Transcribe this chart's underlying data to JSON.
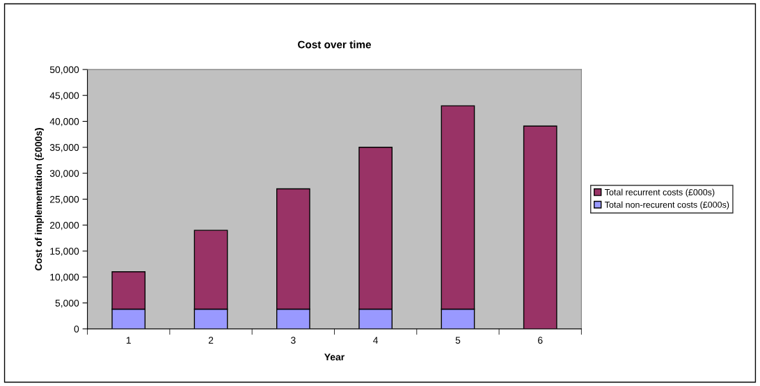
{
  "chart_data": {
    "type": "bar",
    "title": "Cost over time",
    "xlabel": "Year",
    "ylabel": "Cost of implementation (£000s)",
    "categories": [
      "1",
      "2",
      "3",
      "4",
      "5",
      "6"
    ],
    "stacked": true,
    "series": [
      {
        "name": "Total non-recurent costs (£000s)",
        "color": "#9999ff",
        "values": [
          3800,
          3800,
          3800,
          3800,
          3800,
          null
        ]
      },
      {
        "name": "Total recurrent costs (£000s)",
        "color": "#993366",
        "values": [
          7200,
          15200,
          23200,
          31200,
          39200,
          39100
        ]
      }
    ],
    "ylim": [
      0,
      50000
    ],
    "yticks": [
      {
        "value": 0,
        "label": "0"
      },
      {
        "value": 5000,
        "label": "5,000"
      },
      {
        "value": 10000,
        "label": "10,000"
      },
      {
        "value": 15000,
        "label": "15,000"
      },
      {
        "value": 20000,
        "label": "20,000"
      },
      {
        "value": 25000,
        "label": "25,000"
      },
      {
        "value": 30000,
        "label": "30,000"
      },
      {
        "value": 35000,
        "label": "35,000"
      },
      {
        "value": 40000,
        "label": "40,000"
      },
      {
        "value": 45000,
        "label": "45,000"
      },
      {
        "value": 50000,
        "label": "50,000"
      }
    ],
    "grid": false,
    "legend": "right"
  }
}
